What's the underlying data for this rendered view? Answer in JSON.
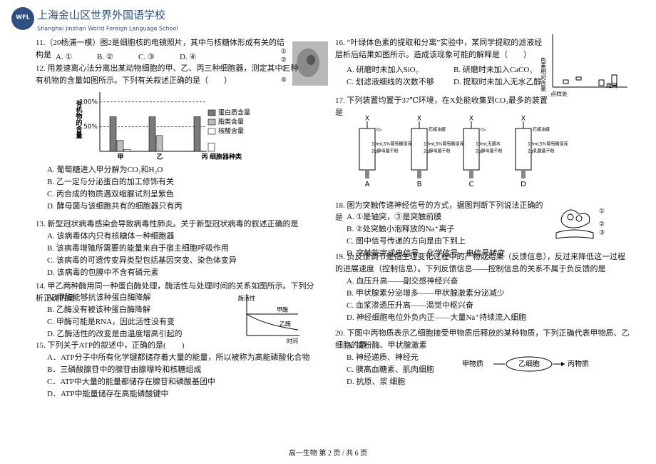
{
  "header": {
    "logo": "WFL",
    "school_cn": "上海金山区世界外国语学校",
    "school_en": "Shanghai Jinshan World Foreign Language School"
  },
  "questions": [
    {
      "stem": "11.（20杨浦一模）图2是细胞核的电镜照片，其中与核糖体形成有关的结构是",
      "options": [
        "A. ①",
        "B. ②",
        "C. ③",
        "D. ④"
      ],
      "figure": {
        "labels": [
          "①",
          "②",
          "③",
          "④"
        ]
      }
    },
    {
      "stem": "12. 用差速离心法分离出某动物细胞的甲、乙、丙三种细胞器，测定其中三种有机物的含量如图所示。下列有关叙述正确的是（　　）",
      "options": [
        "A. 葡萄糖进入甲分解为CO₂和H₂O",
        "B. 乙一定与分泌蛋白的加工修饰有关",
        "C. 丙合成的物质遇双缩脲试剂呈紫色",
        "D. 酵母菌与该细胞共有的细胞器只有丙"
      ]
    },
    {
      "stem": "13. 新型冠状病毒感染会导致病毒性肺炎。关于新型冠状病毒的叙述正确的是",
      "options": [
        "A. 该病毒体内只有核糖体一种细胞器",
        "B. 该病毒增殖所需要的能量来自于宿主细胞呼吸作用",
        "C. 该病毒的可遗传变异类型包括基因突变、染色体变异",
        "D. 该病毒的包膜中不含有磷元素"
      ]
    },
    {
      "stem": "14. 甲乙两种酶用同一种蛋白酶处理，酶活性与处理时间的关系如图所示。下列分析正确的是",
      "options": [
        "A. 甲酶能够抗该种蛋白酶降解",
        "B. 乙酶没有被该种蛋白酶降解",
        "C. 甲酶可能是RNA，因此活性没有变",
        "D. 乙酶活性的改变是由温度增高引起的"
      ],
      "figure": {
        "y_label": "酶活性",
        "line1": "甲酶",
        "line2": "乙酶",
        "x_label": "时间"
      }
    },
    {
      "stem": "15. 下列关于ATP的叙述中，正确的是(　　)",
      "options": [
        "A．ATP分子中所有化学键都储存着大量的能量，所以被称为高能磷酸化合物",
        "B．三磷酸腺苷中的腺苷由腺嘌呤和核糖组成",
        "C．ATP中大量的能量都储存在腺苷和磷酸基团中",
        "D．ATP中能量储存在高能磷酸键中"
      ]
    },
    {
      "stem": "16. “叶绿体色素的提取和分离”实验中，某同学提取的滤液经层析后结果如图所示。造成该现象可能的解释是（　　）",
      "options": [
        "A. 研磨时未加入SiO₂",
        "B. 研磨时未加入CaCO₃",
        "C. 划滤液细线的次数不够",
        "D. 提取时未加入无水乙醇"
      ],
      "figure": {
        "y_label": "色素相对含量",
        "origin": "点样处",
        "x_label": "距离"
      }
    },
    {
      "stem": "17. 下列装置均置于37℃环境，在X处能收集到CO₂最多的装置是",
      "options": [],
      "figure": {
        "devices": [
          {
            "letter": "A",
            "x": "X",
            "top": "O₂",
            "liquid": "10mL5%葡萄糖溶液",
            "powder": "2g酵母菌干粉"
          },
          {
            "letter": "B",
            "x": "X",
            "top": "石蜡油膜",
            "liquid": "10mL5%葡萄糖溶液",
            "powder": "2g酵母菌干粉"
          },
          {
            "letter": "C",
            "x": "X",
            "top": "O₂",
            "liquid": "10mL无菌水",
            "powder": "2g酵母菌干粉"
          },
          {
            "letter": "D",
            "x": "X",
            "top": "石蜡油膜",
            "liquid": "10mL5%葡萄糖溶液",
            "powder": "2g乳酸菌干粉"
          }
        ]
      }
    },
    {
      "stem": "18. 图为突触传递神经信号的方式，据图判断下列说法正确的是",
      "options": [
        "A. ①是轴突，③是突触前膜",
        "B. ②处突触小泡释放的Na⁺离子",
        "C. 图中信号传递的方向是由下到上",
        "D. 突触能完成电信号—化学信号—电信号转变"
      ],
      "figure": {
        "labels": [
          "①",
          "②",
          "③"
        ]
      }
    },
    {
      "stem": "19. 负反馈调节是指生理变化过程中的产物或结果（反馈信息），反过来降低这一过程的进展速度（控制信息）。下列反馈信息——控制信息的关系不属于负反馈的是",
      "options": [
        "A. 血压升高——副交感神经兴奋",
        "B. 甲状腺素分泌增多——甲状腺激素分泌减少",
        "C. 血浆渗透压升高——渴觉中枢兴奋",
        "D. 神经细胞电位外负内正——大量Na⁺持续流入细胞"
      ]
    },
    {
      "stem": "20. 下图中丙物质表示乙细胞接受甲物质后释放的某种物质，下列正确代表甲物质、乙细胞的是",
      "options": [
        "A. 淀粉酶、甲状腺激素",
        "B. 神经递质、神经元",
        "C. 胰高血糖素、肌肉细胞",
        "D. 抗原、浆 细胞"
      ],
      "figure": {
        "input": "甲物质",
        "cell": "乙细胞",
        "output": "丙物质"
      }
    }
  ],
  "chart_data": {
    "type": "bar",
    "y_label": "有机物的含量",
    "x_label": "细胞器种类",
    "categories": [
      "甲",
      "乙",
      "丙"
    ],
    "series": [
      {
        "name": "蛋白质含量",
        "color": "#7a7a7a",
        "values": [
          70,
          70,
          70
        ]
      },
      {
        "name": "脂类含量",
        "color": "#bdbdbd",
        "values": [
          22,
          32,
          0
        ]
      },
      {
        "name": "核酸含量",
        "color": "#ffffff",
        "values": [
          4,
          0,
          17
        ]
      }
    ],
    "ylim": [
      0,
      120
    ],
    "yticks": [
      {
        "value": 50,
        "label": "50%"
      },
      {
        "value": 100,
        "label": "100%"
      }
    ]
  },
  "footer": "高一生物 第 2 页 / 共 6 页"
}
